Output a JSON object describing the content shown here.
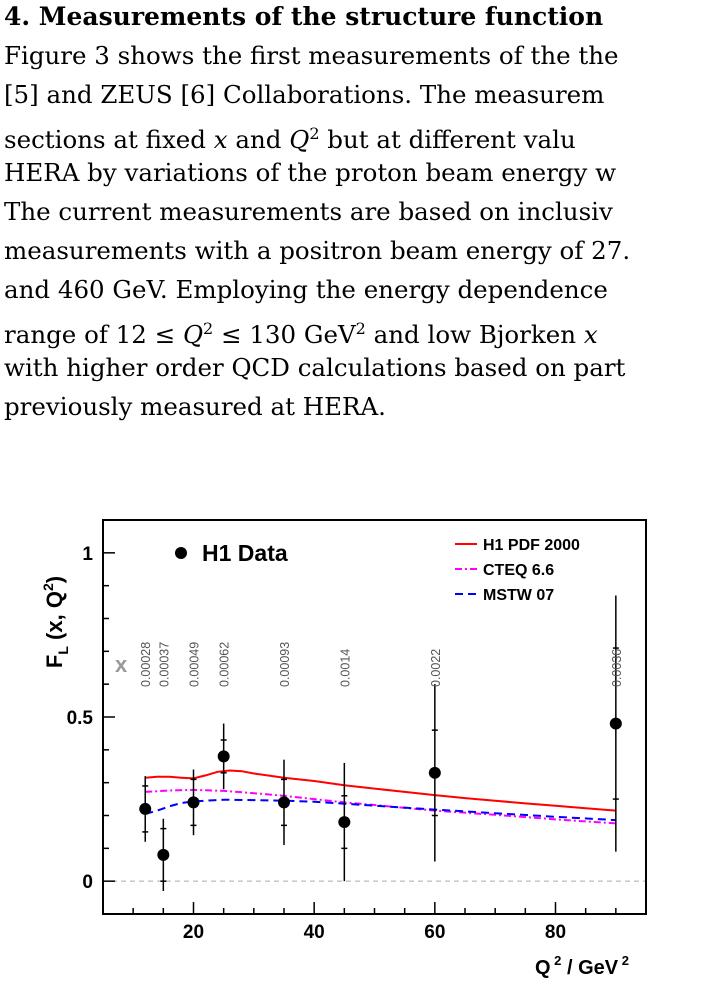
{
  "section": {
    "heading": "4. Measurements of the structure function"
  },
  "paragraph_lines": [
    [
      "Figure 3 shows the first measurements of the the"
    ],
    [
      "[5] and ZEUS [6] Collaborations. The measurem"
    ],
    [
      "sections at fixed ",
      {
        "m": "x"
      },
      " and ",
      {
        "m": "Q"
      },
      {
        "sup": "2"
      },
      " but at different valu"
    ],
    [
      "HERA by variations of the proton beam energy w"
    ],
    [
      "The current measurements are based on inclusiv"
    ],
    [
      "measurements with a positron beam energy of 27."
    ],
    [
      "and 460 GeV. Employing the energy dependence"
    ],
    [
      "range of 12 ≤ ",
      {
        "m": "Q"
      },
      {
        "sup": "2"
      },
      " ≤ 130 GeV",
      {
        "sup": "2"
      },
      " and low Bjorken ",
      {
        "m": "x"
      }
    ],
    [
      "with higher order QCD calculations based on part"
    ],
    [
      "previously measured at HERA."
    ]
  ],
  "chart_data": {
    "type": "scatter",
    "ylabel": "F_L (x, Q²)",
    "xlabel": "Q ² / GeV ²",
    "xlim": [
      5,
      95
    ],
    "ylim": [
      -0.1,
      1.1
    ],
    "xticks": [
      20,
      40,
      60,
      80
    ],
    "yticks": [
      0,
      0.5,
      1
    ],
    "yticklabels": [
      "0",
      "0.5",
      "1"
    ],
    "data_legend": "H1 Data",
    "x_marker_label": "x",
    "reference_line_y": 0,
    "colors": {
      "data": "#000000",
      "h1pdf": "#ff0000",
      "cteq": "#ff00ff",
      "mstw": "#0000ff",
      "x_label": "#999999",
      "zero_line": "#aaaaaa"
    },
    "data_points": [
      {
        "q2": 12,
        "fl": 0.22,
        "err_stat": 0.07,
        "err_tot": 0.1
      },
      {
        "q2": 15,
        "fl": 0.08,
        "err_stat": 0.08,
        "err_tot": 0.11
      },
      {
        "q2": 20,
        "fl": 0.24,
        "err_stat": 0.07,
        "err_tot": 0.1
      },
      {
        "q2": 25,
        "fl": 0.38,
        "err_stat": 0.05,
        "err_tot": 0.1
      },
      {
        "q2": 35,
        "fl": 0.24,
        "err_stat": 0.07,
        "err_tot": 0.13
      },
      {
        "q2": 45,
        "fl": 0.18,
        "err_stat": 0.08,
        "err_tot": 0.18
      },
      {
        "q2": 60,
        "fl": 0.33,
        "err_stat": 0.13,
        "err_tot": 0.27
      },
      {
        "q2": 90,
        "fl": 0.48,
        "err_stat": 0.23,
        "err_tot": 0.39
      }
    ],
    "x_values": [
      {
        "q2": 12,
        "label": "0.00028"
      },
      {
        "q2": 15,
        "label": "0.00037"
      },
      {
        "q2": 20,
        "label": "0.00049"
      },
      {
        "q2": 25,
        "label": "0.00062"
      },
      {
        "q2": 35,
        "label": "0.00093"
      },
      {
        "q2": 45,
        "label": "0.0014"
      },
      {
        "q2": 60,
        "label": "0.0022"
      },
      {
        "q2": 90,
        "label": "0.0036"
      }
    ],
    "series": [
      {
        "name": "H1 PDF 2000",
        "style": "solid",
        "points": [
          [
            12,
            0.315
          ],
          [
            14,
            0.318
          ],
          [
            16,
            0.318
          ],
          [
            18,
            0.315
          ],
          [
            20,
            0.313
          ],
          [
            22,
            0.322
          ],
          [
            24,
            0.333
          ],
          [
            26,
            0.337
          ],
          [
            28,
            0.335
          ],
          [
            30,
            0.328
          ],
          [
            35,
            0.315
          ],
          [
            40,
            0.305
          ],
          [
            45,
            0.292
          ],
          [
            50,
            0.282
          ],
          [
            55,
            0.272
          ],
          [
            60,
            0.262
          ],
          [
            65,
            0.253
          ],
          [
            70,
            0.245
          ],
          [
            75,
            0.237
          ],
          [
            80,
            0.23
          ],
          [
            85,
            0.222
          ],
          [
            90,
            0.215
          ]
        ]
      },
      {
        "name": "CTEQ 6.6",
        "style": "dashdot",
        "points": [
          [
            12,
            0.272
          ],
          [
            16,
            0.276
          ],
          [
            20,
            0.278
          ],
          [
            25,
            0.275
          ],
          [
            30,
            0.268
          ],
          [
            35,
            0.26
          ],
          [
            40,
            0.25
          ],
          [
            45,
            0.24
          ],
          [
            50,
            0.232
          ],
          [
            55,
            0.223
          ],
          [
            60,
            0.215
          ],
          [
            70,
            0.202
          ],
          [
            80,
            0.188
          ],
          [
            90,
            0.176
          ]
        ]
      },
      {
        "name": "MSTW 07",
        "style": "dashed",
        "points": [
          [
            12,
            0.205
          ],
          [
            14,
            0.215
          ],
          [
            16,
            0.228
          ],
          [
            18,
            0.238
          ],
          [
            20,
            0.243
          ],
          [
            25,
            0.248
          ],
          [
            30,
            0.247
          ],
          [
            35,
            0.245
          ],
          [
            40,
            0.242
          ],
          [
            45,
            0.236
          ],
          [
            50,
            0.23
          ],
          [
            60,
            0.218
          ],
          [
            70,
            0.207
          ],
          [
            80,
            0.196
          ],
          [
            90,
            0.186
          ]
        ]
      }
    ]
  }
}
